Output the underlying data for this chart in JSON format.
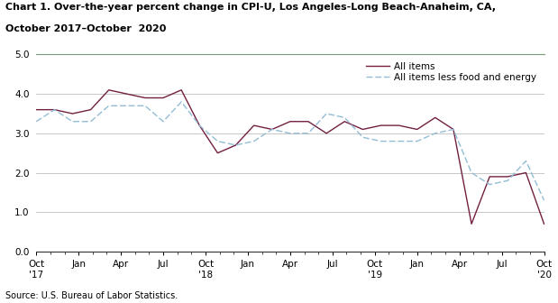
{
  "title_line1": "Chart 1. Over-the-year percent change in CPI-U, Los Angeles-Long Beach-Anaheim, CA,",
  "title_line2": "October 2017–October  2020",
  "source": "Source: U.S. Bureau of Labor Statistics.",
  "ylim": [
    0.0,
    5.0
  ],
  "yticks": [
    0.0,
    1.0,
    2.0,
    3.0,
    4.0,
    5.0
  ],
  "all_items": [
    3.6,
    3.6,
    3.5,
    3.6,
    4.1,
    4.0,
    3.9,
    3.9,
    4.1,
    3.2,
    2.5,
    2.7,
    3.2,
    3.1,
    3.3,
    3.3,
    3.0,
    3.3,
    3.1,
    3.2,
    3.2,
    3.1,
    3.4,
    3.1,
    0.7,
    1.9,
    1.9,
    2.0,
    0.7
  ],
  "all_items_less": [
    3.3,
    3.6,
    3.3,
    3.3,
    3.7,
    3.7,
    3.7,
    3.3,
    3.8,
    3.2,
    2.8,
    2.7,
    2.8,
    3.1,
    3.0,
    3.0,
    3.5,
    3.4,
    2.9,
    2.8,
    2.8,
    2.8,
    3.0,
    3.1,
    2.0,
    1.7,
    1.8,
    2.3,
    1.3
  ],
  "x_tick_labels": [
    "Oct\n'17",
    "Jan",
    "Apr",
    "Jul",
    "Oct\n'18",
    "Jan",
    "Apr",
    "Jul",
    "Oct\n'19",
    "Jan",
    "Apr",
    "Jul",
    "Oct\n'20"
  ],
  "x_tick_positions": [
    0,
    3,
    6,
    9,
    12,
    15,
    18,
    21,
    24,
    27,
    30,
    33,
    36
  ],
  "color_all_items": "#722041",
  "color_less": "#92bdd4",
  "background_color": "#ffffff",
  "plot_bg": "#ffffff",
  "grid_color": "#b0b0b0",
  "spine_color": "#7a9a7a",
  "title_fontsize": 8.0,
  "tick_fontsize": 7.5,
  "legend_fontsize": 7.5
}
